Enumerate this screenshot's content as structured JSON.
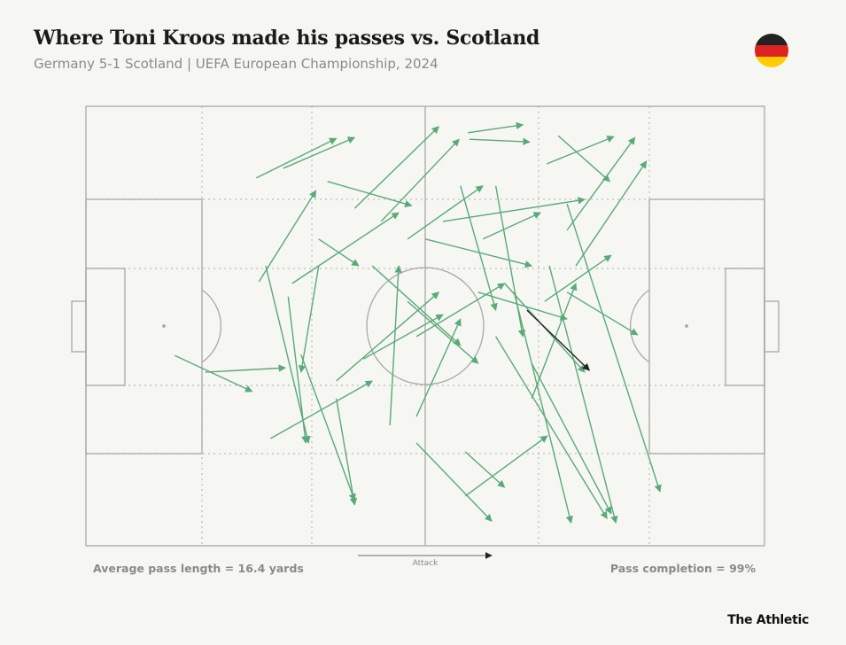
{
  "chart_data": {
    "type": "pass-map",
    "title": "Where Toni Kroos made his passes vs. Scotland",
    "subtitle": "Germany 5-1 Scotland | UEFA European Championship, 2024",
    "footer_left": "Average pass length = 16.4 yards",
    "footer_right": "Pass completion = 99%",
    "direction_label": "Attack",
    "source": "The Athletic",
    "xlim": [
      0,
      100
    ],
    "ylim": [
      0,
      100
    ],
    "series": [
      {
        "color": "#5aaa78",
        "passes": [
          [
            25.1,
            16.3,
            36.9,
            7.3
          ],
          [
            29.1,
            14.1,
            39.6,
            7.1
          ],
          [
            13.1,
            56.7,
            24.5,
            64.9
          ],
          [
            17.6,
            60.5,
            29.4,
            59.5
          ],
          [
            25.5,
            39.9,
            33.9,
            19.2
          ],
          [
            29.8,
            43.3,
            32.4,
            76.6
          ],
          [
            26.5,
            36.3,
            32.8,
            76.6
          ],
          [
            35.6,
            17.1,
            48.0,
            22.6
          ],
          [
            39.6,
            23.2,
            52.0,
            4.6
          ],
          [
            43.5,
            26.2,
            55.0,
            7.5
          ],
          [
            56.3,
            6.0,
            64.4,
            4.2
          ],
          [
            56.5,
            7.5,
            65.4,
            8.1
          ],
          [
            47.4,
            30.2,
            58.5,
            18.1
          ],
          [
            67.9,
            13.1,
            77.8,
            6.9
          ],
          [
            69.6,
            6.7,
            77.2,
            17.1
          ],
          [
            70.9,
            28.2,
            80.9,
            7.1
          ],
          [
            72.2,
            36.3,
            82.6,
            12.5
          ],
          [
            67.6,
            44.4,
            77.4,
            33.9
          ],
          [
            70.9,
            42.3,
            81.3,
            52.0
          ],
          [
            68.3,
            36.3,
            78.1,
            94.8
          ],
          [
            63.1,
            42.3,
            71.5,
            94.8
          ],
          [
            60.4,
            52.4,
            76.8,
            93.8
          ],
          [
            65.7,
            58.5,
            77.4,
            92.7
          ],
          [
            55.9,
            78.6,
            61.7,
            86.7
          ],
          [
            48.7,
            76.6,
            59.8,
            94.4
          ],
          [
            55.9,
            88.7,
            68.0,
            75.0
          ],
          [
            70.9,
            22.2,
            84.6,
            87.7
          ],
          [
            27.2,
            75.6,
            42.2,
            62.5
          ],
          [
            36.9,
            62.5,
            52.0,
            42.3
          ],
          [
            31.7,
            56.5,
            39.6,
            89.7
          ],
          [
            34.3,
            30.2,
            40.2,
            36.3
          ],
          [
            30.4,
            40.3,
            46.1,
            24.2
          ],
          [
            40.9,
            57.5,
            52.6,
            47.4
          ],
          [
            44.8,
            72.6,
            46.1,
            36.3
          ],
          [
            48.7,
            70.6,
            55.2,
            48.4
          ],
          [
            50.0,
            30.2,
            65.7,
            36.3
          ],
          [
            42.2,
            36.3,
            55.2,
            54.4
          ],
          [
            47.4,
            44.4,
            57.8,
            58.5
          ],
          [
            55.2,
            18.1,
            60.4,
            46.4
          ],
          [
            60.4,
            18.1,
            64.4,
            52.4
          ],
          [
            57.8,
            42.3,
            70.9,
            48.4
          ],
          [
            58.5,
            30.2,
            67.0,
            24.2
          ],
          [
            52.6,
            26.2,
            73.5,
            21.2
          ],
          [
            61.7,
            40.3,
            73.5,
            60.5
          ],
          [
            48.7,
            52.4,
            61.7,
            40.3
          ],
          [
            36.9,
            66.5,
            39.6,
            90.7
          ],
          [
            34.3,
            36.3,
            31.7,
            60.5
          ],
          [
            65.7,
            66.5,
            72.2,
            40.3
          ]
        ]
      },
      {
        "color": "#222222",
        "passes": [
          [
            65.0,
            46.4,
            74.2,
            60.1
          ]
        ]
      }
    ]
  }
}
